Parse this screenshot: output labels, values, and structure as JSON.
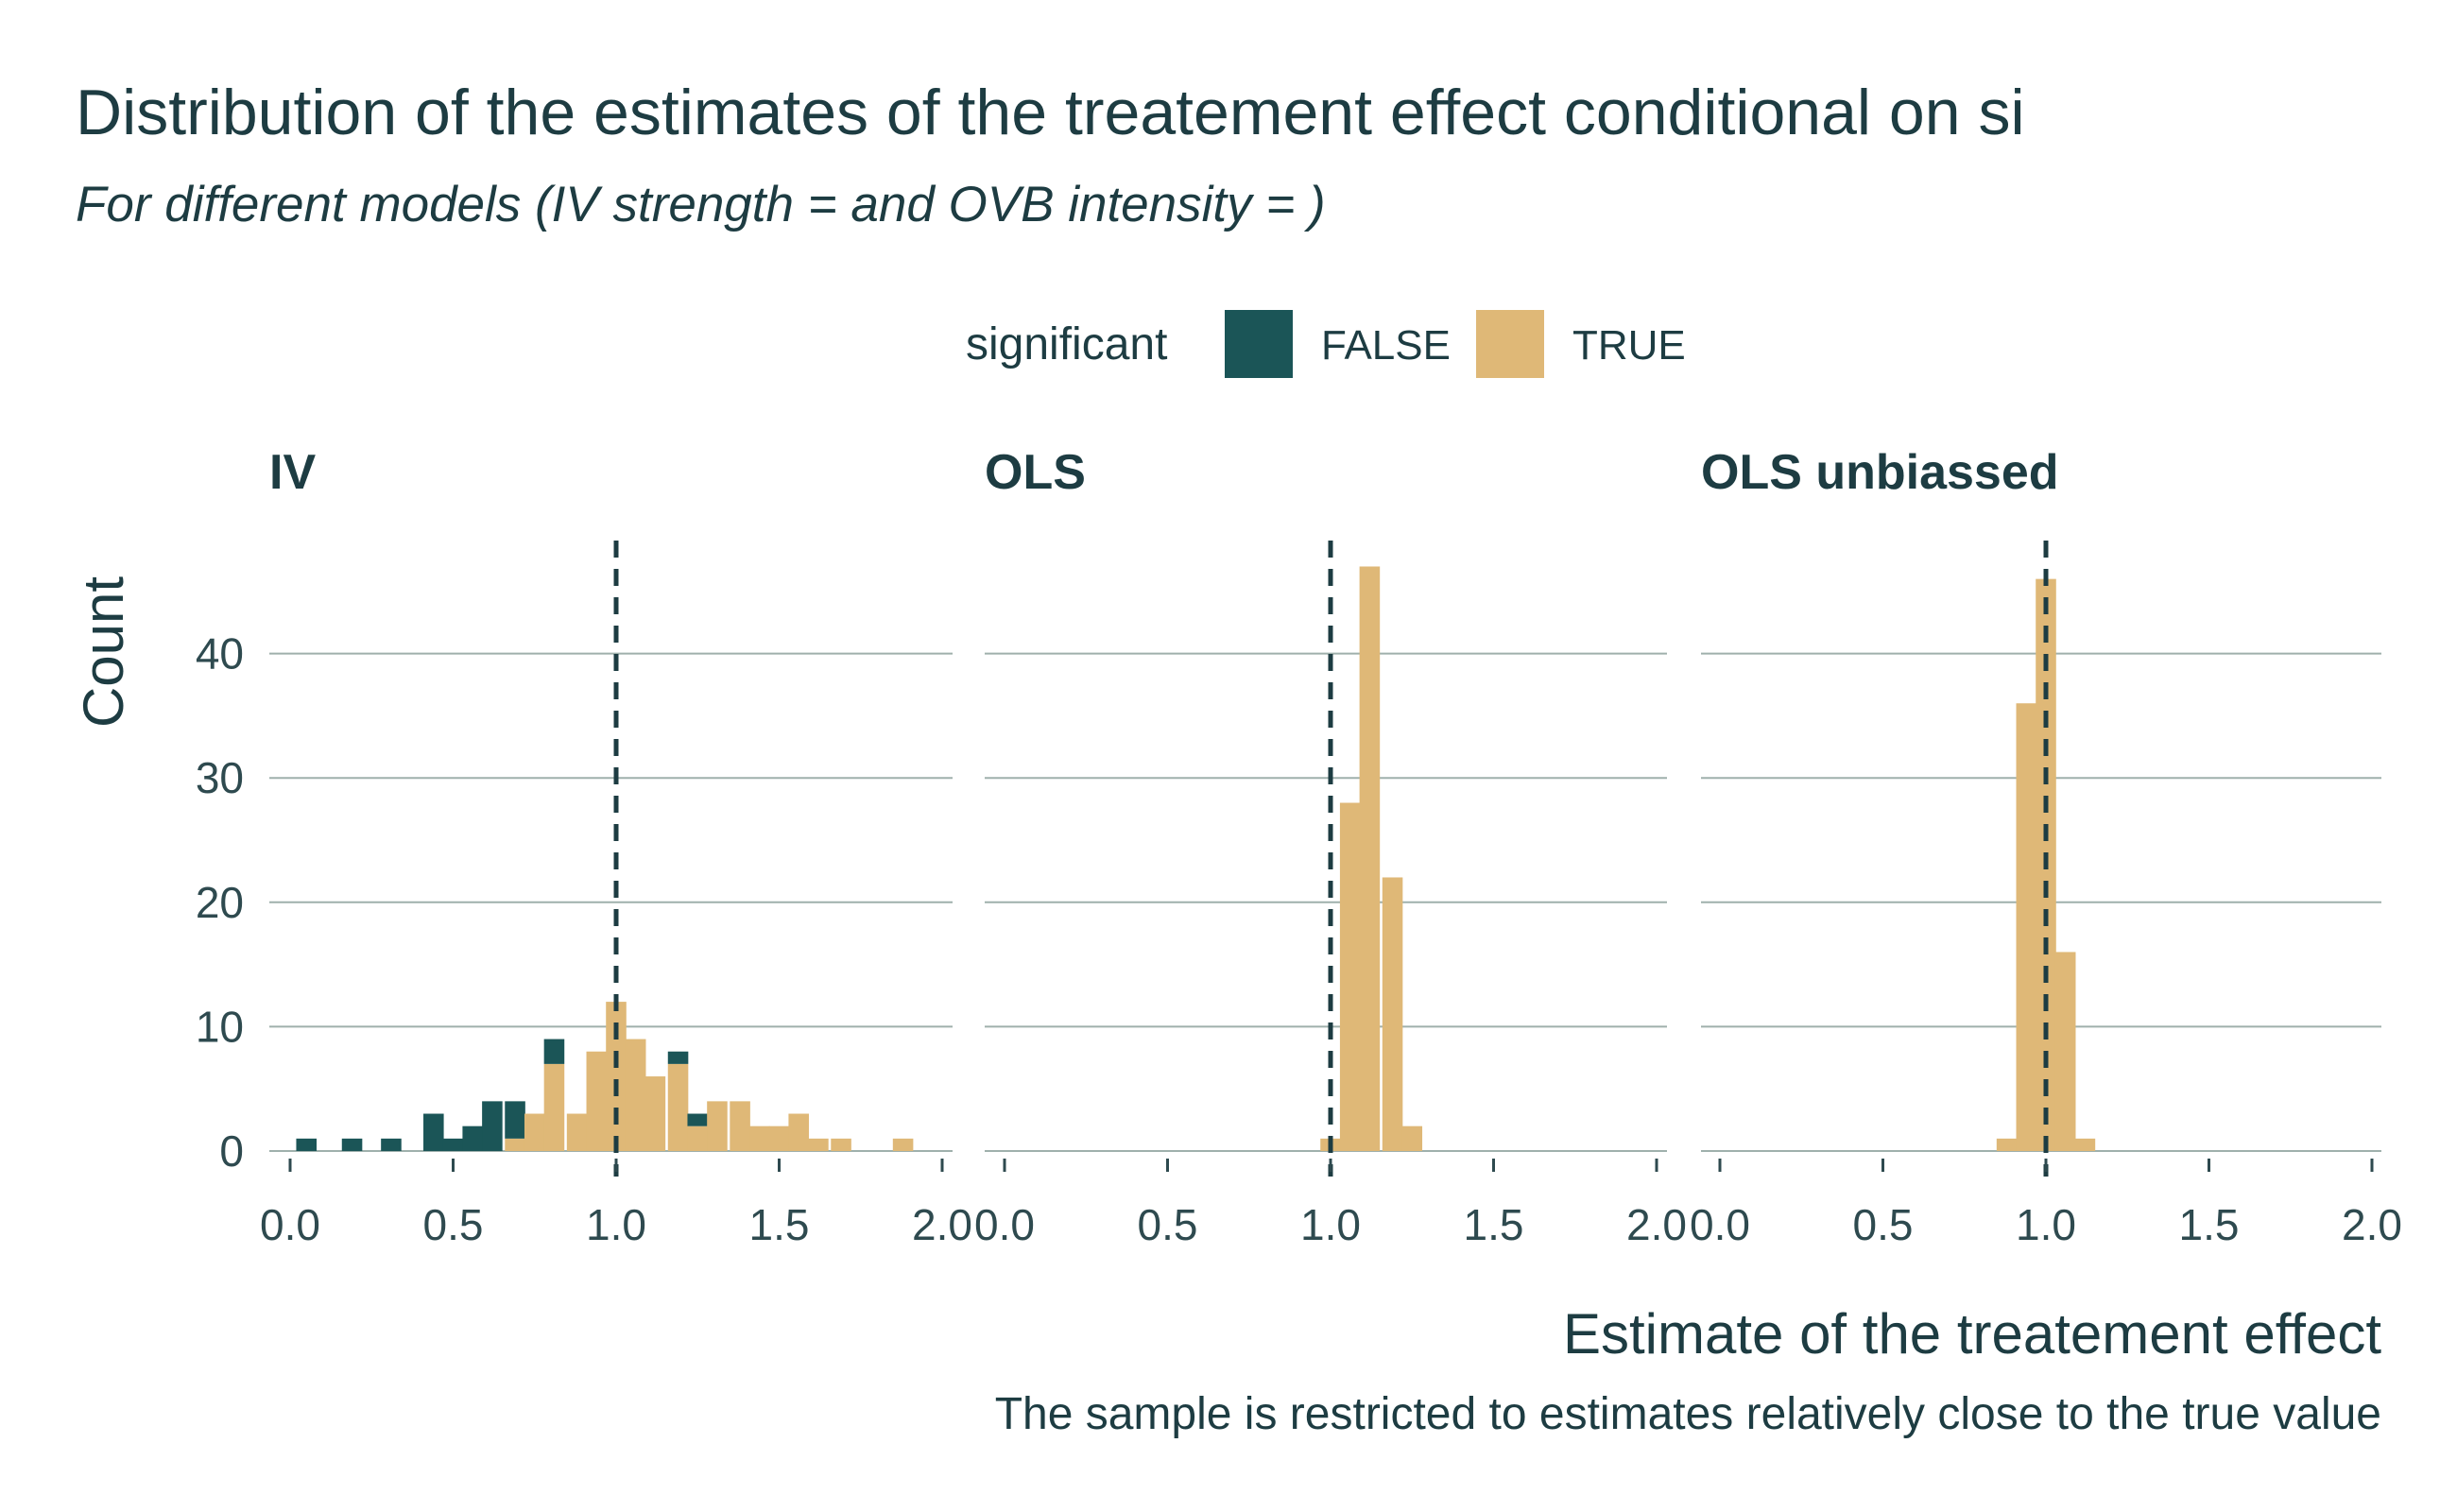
{
  "chart_data": {
    "type": "histogram",
    "title": "Distribution of the estimates of the treatement effect conditional on si",
    "subtitle": "For different models (IV strength =  and OVB intensity =   )",
    "xlabel": "Estimate of the treatement effect",
    "ylabel": "Count",
    "caption": "The sample is restricted to estimates relatively close to the true value",
    "legend": {
      "title": "significant",
      "entries": [
        {
          "label": "FALSE",
          "color": "#1b5557"
        },
        {
          "label": "TRUE",
          "color": "#dfb877"
        }
      ],
      "position": "top"
    },
    "xlim": [
      0.0,
      2.0
    ],
    "ylim": [
      0,
      50
    ],
    "x_ticks": [
      0.0,
      0.5,
      1.0,
      1.5,
      2.0
    ],
    "x_tick_labels": [
      "0.0",
      "0.5",
      "1.0",
      "1.5",
      "2.0"
    ],
    "y_ticks": [
      0,
      10,
      20,
      30,
      40
    ],
    "y_tick_labels": [
      "0",
      "10",
      "20",
      "30",
      "40"
    ],
    "true_value": 1.0,
    "bin_width": 0.0625,
    "panels": [
      {
        "name": "IV",
        "bars": [
          {
            "x": 0.05,
            "false": 1,
            "true": 0
          },
          {
            "x": 0.19,
            "false": 1,
            "true": 0
          },
          {
            "x": 0.31,
            "false": 1,
            "true": 0
          },
          {
            "x": 0.44,
            "false": 3,
            "true": 0
          },
          {
            "x": 0.5,
            "false": 1,
            "true": 0
          },
          {
            "x": 0.56,
            "false": 2,
            "true": 0
          },
          {
            "x": 0.62,
            "false": 4,
            "true": 0
          },
          {
            "x": 0.69,
            "false": 3,
            "true": 1
          },
          {
            "x": 0.75,
            "false": 0,
            "true": 3
          },
          {
            "x": 0.81,
            "false": 2,
            "true": 7
          },
          {
            "x": 0.88,
            "false": 0,
            "true": 3
          },
          {
            "x": 0.94,
            "false": 0,
            "true": 8
          },
          {
            "x": 1.0,
            "false": 0,
            "true": 12
          },
          {
            "x": 1.06,
            "false": 0,
            "true": 9
          },
          {
            "x": 1.12,
            "false": 0,
            "true": 6
          },
          {
            "x": 1.19,
            "false": 1,
            "true": 7
          },
          {
            "x": 1.25,
            "false": 1,
            "true": 2
          },
          {
            "x": 1.31,
            "false": 0,
            "true": 4
          },
          {
            "x": 1.38,
            "false": 0,
            "true": 4
          },
          {
            "x": 1.44,
            "false": 0,
            "true": 2
          },
          {
            "x": 1.5,
            "false": 0,
            "true": 2
          },
          {
            "x": 1.56,
            "false": 0,
            "true": 3
          },
          {
            "x": 1.62,
            "false": 0,
            "true": 1
          },
          {
            "x": 1.69,
            "false": 0,
            "true": 1
          },
          {
            "x": 1.88,
            "false": 0,
            "true": 1
          }
        ]
      },
      {
        "name": "OLS",
        "bars": [
          {
            "x": 1.0,
            "false": 0,
            "true": 1
          },
          {
            "x": 1.06,
            "false": 0,
            "true": 28
          },
          {
            "x": 1.12,
            "false": 0,
            "true": 47
          },
          {
            "x": 1.19,
            "false": 0,
            "true": 22
          },
          {
            "x": 1.25,
            "false": 0,
            "true": 2
          }
        ]
      },
      {
        "name": "OLS unbiassed",
        "bars": [
          {
            "x": 0.88,
            "false": 0,
            "true": 1
          },
          {
            "x": 0.94,
            "false": 0,
            "true": 36
          },
          {
            "x": 1.0,
            "false": 0,
            "true": 46
          },
          {
            "x": 1.06,
            "false": 0,
            "true": 16
          },
          {
            "x": 1.12,
            "false": 0,
            "true": 1
          }
        ]
      }
    ]
  }
}
